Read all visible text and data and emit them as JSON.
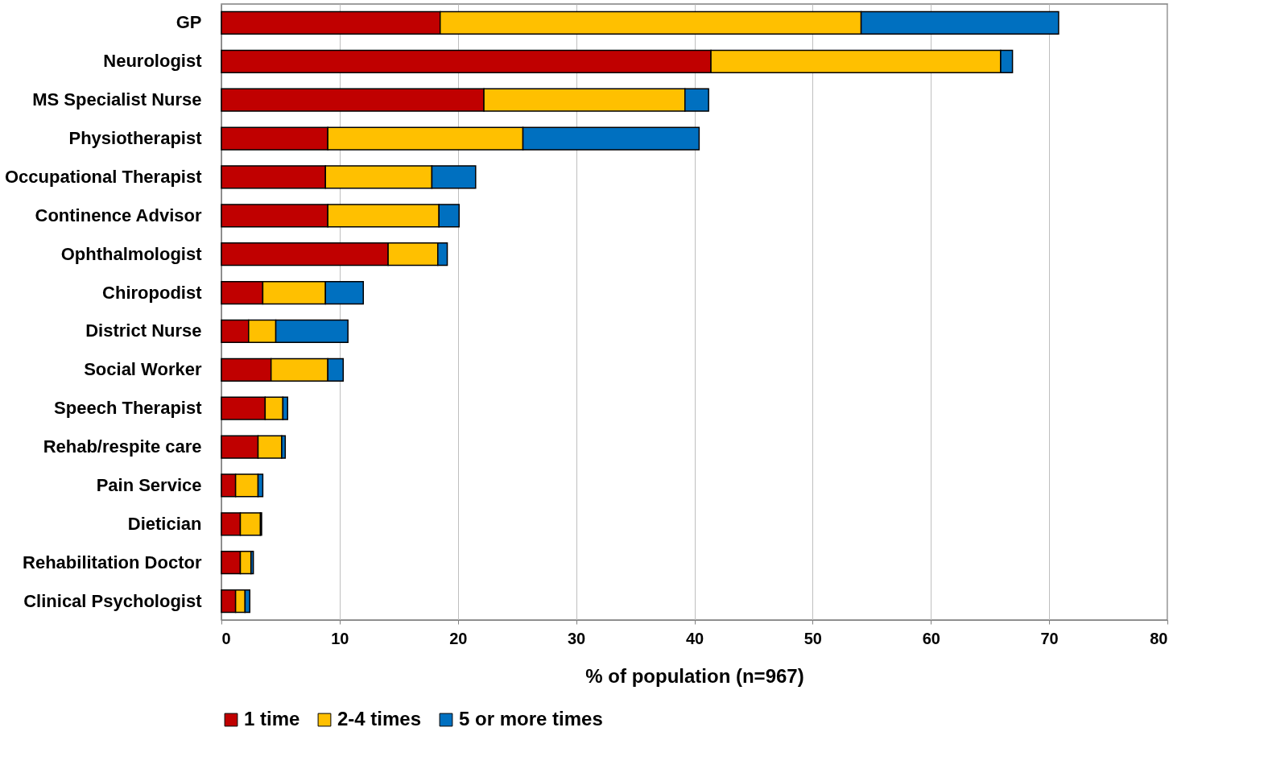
{
  "chart_data": {
    "type": "bar",
    "orientation": "horizontal",
    "stacked": true,
    "xlabel": "% of population (n=967)",
    "categories": [
      "GP",
      "Neurologist",
      "MS Specialist Nurse",
      "Physiotherapist",
      "Occupational Therapist",
      "Continence Advisor",
      "Ophthalmologist",
      "Chiropodist",
      "District Nurse",
      "Social Worker",
      "Speech Therapist",
      "Rehab/respite care",
      "Pain Service",
      "Dietician",
      "Rehabilitation Doctor",
      "Clinical Psychologist"
    ],
    "series": [
      {
        "name": "1 time",
        "color": "#c00000",
        "values": [
          18.5,
          41.4,
          22.2,
          9.0,
          8.8,
          9.0,
          14.1,
          3.5,
          2.3,
          4.2,
          3.7,
          3.1,
          1.2,
          1.6,
          1.6,
          1.2
        ]
      },
      {
        "name": "2-4 times",
        "color": "#ffc000",
        "values": [
          35.6,
          24.5,
          17.0,
          16.5,
          9.0,
          9.4,
          4.2,
          5.3,
          2.3,
          4.8,
          1.5,
          2.0,
          1.9,
          1.7,
          0.9,
          0.8
        ]
      },
      {
        "name": "5 or more times",
        "color": "#0070c0",
        "values": [
          16.7,
          1.0,
          2.0,
          14.9,
          3.7,
          1.7,
          0.8,
          3.2,
          6.1,
          1.3,
          0.4,
          0.3,
          0.4,
          0.1,
          0.2,
          0.4
        ]
      }
    ],
    "xlim": [
      0,
      80
    ],
    "xticks": [
      0,
      10,
      20,
      30,
      40,
      50,
      60,
      70,
      80
    ],
    "grid": "x",
    "legend": "bottom"
  }
}
